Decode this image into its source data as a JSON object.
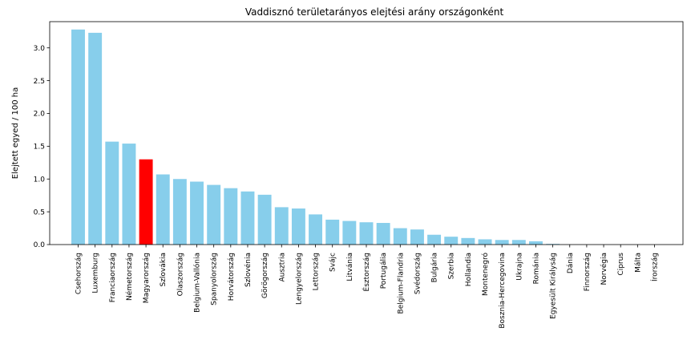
{
  "chart_data": {
    "type": "bar",
    "title": "Vaddisznó területarányos elejtési arány országonként",
    "xlabel": "",
    "ylabel": "Elejtett egyed / 100 ha",
    "ylim": [
      0,
      3.4
    ],
    "yticks": [
      0.0,
      0.5,
      1.0,
      1.5,
      2.0,
      2.5,
      3.0
    ],
    "ytick_labels": [
      "0.0",
      "0.5",
      "1.0",
      "1.5",
      "2.0",
      "2.5",
      "3.0"
    ],
    "grid": false,
    "legend": "none",
    "colors": {
      "default": "#87ceeb",
      "highlight": "#ff0000"
    },
    "highlight_category": "Magyarország",
    "categories": [
      "Csehország",
      "Luxemburg",
      "Franciaország",
      "Németország",
      "Magyarország",
      "Szlovákia",
      "Olaszország",
      "Belgium-Vallónia",
      "Spanyolország",
      "Horvátország",
      "Szlovénia",
      "Görögország",
      "Ausztria",
      "Lengyelország",
      "Lettország",
      "Svájc",
      "Litvánia",
      "Észtország",
      "Portugália",
      "Belgium-Flandria",
      "Svédország",
      "Bulgária",
      "Szerbia",
      "Hollandia",
      "Montenegró",
      "Bosznia-Hercegovina",
      "Ukrajna",
      "Románia",
      "Egyesült Királyság",
      "Dánia",
      "Finnország",
      "Norvégia",
      "Ciprus",
      "Málta",
      "Írország"
    ],
    "values": [
      3.28,
      3.23,
      1.57,
      1.54,
      1.3,
      1.07,
      1.0,
      0.96,
      0.91,
      0.86,
      0.81,
      0.76,
      0.57,
      0.55,
      0.46,
      0.38,
      0.36,
      0.34,
      0.33,
      0.25,
      0.23,
      0.15,
      0.12,
      0.1,
      0.08,
      0.07,
      0.07,
      0.05,
      0.01,
      0.0,
      0.0,
      0.0,
      0.0,
      0.0,
      0.0
    ]
  }
}
